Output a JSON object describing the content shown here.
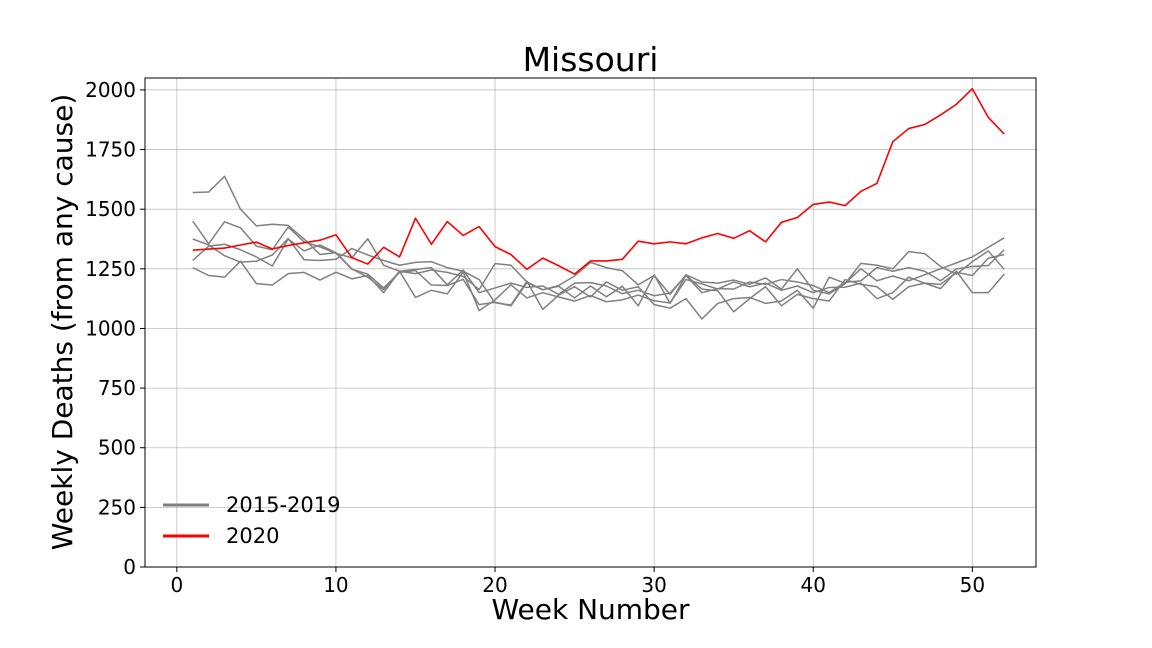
{
  "chart_data": {
    "type": "line",
    "title": "Missouri",
    "xlabel": "Week Number",
    "ylabel": "Weekly Deaths (from any cause)",
    "xlim": [
      -2,
      54
    ],
    "ylim": [
      0,
      2050
    ],
    "xticks": [
      0,
      10,
      20,
      30,
      40,
      50
    ],
    "yticks": [
      0,
      250,
      500,
      750,
      1000,
      1250,
      1500,
      1750,
      2000
    ],
    "grid": true,
    "legend_position": "lower-left",
    "legend": [
      {
        "label": "2015-2019",
        "color": "#808080"
      },
      {
        "label": "2020",
        "color": "#ff0000"
      }
    ],
    "series": [
      {
        "color": "#808080",
        "legend_group": "2015-2019",
        "values": [
          1570,
          1572,
          1638,
          1500,
          1430,
          1437,
          1432,
          1375,
          1310,
          1318,
          1250,
          1215,
          1163,
          1240,
          1247,
          1255,
          1183,
          1245,
          1150,
          1170,
          1190,
          1172,
          1178,
          1143,
          1190,
          1192,
          1178,
          1146,
          1160,
          1137,
          1148,
          1222,
          1150,
          1167,
          1165,
          1195,
          1185,
          1205,
          1195,
          1180,
          1150,
          1193,
          1200,
          1255,
          1240,
          1255,
          1240,
          1200,
          1250,
          1260,
          1264,
          1330
        ]
      },
      {
        "color": "#808080",
        "legend_group": "2015-2019",
        "values": [
          1450,
          1355,
          1447,
          1422,
          1345,
          1330,
          1425,
          1363,
          1342,
          1315,
          1296,
          1376,
          1265,
          1240,
          1230,
          1245,
          1235,
          1218,
          1163,
          1272,
          1265,
          1195,
          1162,
          1180,
          1220,
          1277,
          1255,
          1242,
          1183,
          1222,
          1143,
          1225,
          1195,
          1190,
          1203,
          1185,
          1212,
          1165,
          1250,
          1160,
          1145,
          1188,
          1273,
          1265,
          1250,
          1322,
          1314,
          1260,
          1227,
          1280,
          1325,
          1248
        ]
      },
      {
        "color": "#808080",
        "legend_group": "2015-2019",
        "values": [
          1375,
          1350,
          1305,
          1278,
          1282,
          1308,
          1377,
          1288,
          1285,
          1290,
          1335,
          1308,
          1285,
          1265,
          1277,
          1280,
          1255,
          1240,
          1205,
          1108,
          1098,
          1198,
          1080,
          1140,
          1175,
          1132,
          1195,
          1160,
          1175,
          1100,
          1085,
          1125,
          1040,
          1105,
          1125,
          1130,
          1105,
          1115,
          1160,
          1085,
          1215,
          1190,
          1250,
          1200,
          1220,
          1200,
          1225,
          1250,
          1275,
          1300,
          1340,
          1380
        ]
      },
      {
        "color": "#808080",
        "legend_group": "2015-2019",
        "values": [
          1285,
          1345,
          1353,
          1330,
          1300,
          1262,
          1375,
          1325,
          1350,
          1317,
          1248,
          1228,
          1170,
          1235,
          1243,
          1182,
          1180,
          1206,
          1100,
          1110,
          1095,
          1192,
          1162,
          1177,
          1128,
          1178,
          1133,
          1177,
          1095,
          1225,
          1105,
          1223,
          1165,
          1158,
          1070,
          1125,
          1175,
          1095,
          1143,
          1125,
          1115,
          1205,
          1185,
          1175,
          1122,
          1175,
          1190,
          1167,
          1240,
          1150,
          1150,
          1228
        ]
      },
      {
        "color": "#808080",
        "legend_group": "2015-2019",
        "values": [
          1255,
          1222,
          1215,
          1282,
          1188,
          1182,
          1230,
          1235,
          1203,
          1236,
          1208,
          1222,
          1150,
          1240,
          1130,
          1160,
          1145,
          1237,
          1075,
          1120,
          1183,
          1128,
          1150,
          1132,
          1115,
          1138,
          1112,
          1120,
          1140,
          1116,
          1107,
          1205,
          1187,
          1165,
          1195,
          1175,
          1190,
          1160,
          1178,
          1150,
          1172,
          1173,
          1190,
          1125,
          1150,
          1215,
          1190,
          1185,
          1235,
          1222,
          1295,
          1310
        ]
      },
      {
        "color": "#ff0000",
        "legend_group": "2020",
        "values": [
          1328,
          1333,
          1337,
          1350,
          1362,
          1333,
          1348,
          1359,
          1370,
          1393,
          1297,
          1270,
          1340,
          1300,
          1462,
          1353,
          1448,
          1390,
          1427,
          1343,
          1310,
          1248,
          1295,
          1263,
          1228,
          1283,
          1283,
          1290,
          1366,
          1355,
          1363,
          1355,
          1380,
          1398,
          1378,
          1410,
          1363,
          1445,
          1465,
          1520,
          1530,
          1515,
          1575,
          1608,
          1783,
          1838,
          1855,
          1895,
          1940,
          2005,
          1885,
          1815
        ]
      }
    ]
  }
}
